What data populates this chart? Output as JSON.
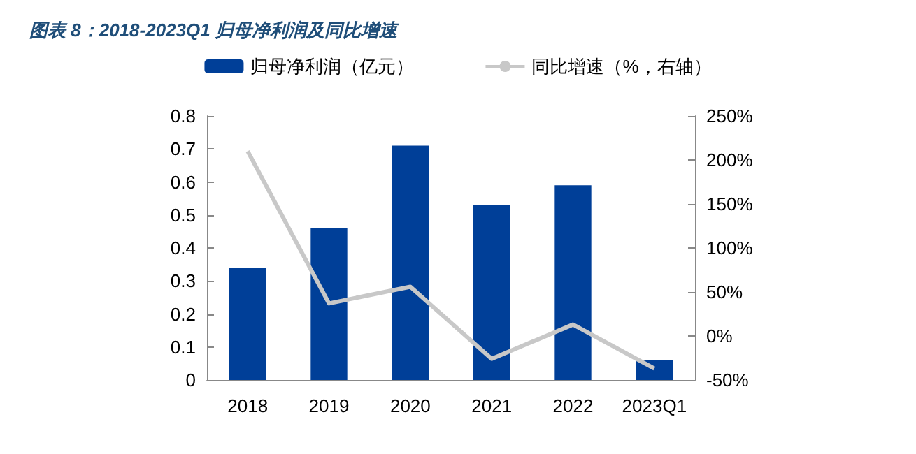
{
  "chart_data": {
    "type": "bar",
    "title": "图表 8：2018-2023Q1 归母净利润及同比增速",
    "categories": [
      "2018",
      "2019",
      "2020",
      "2021",
      "2022",
      "2023Q1"
    ],
    "series": [
      {
        "name": "归母净利润（亿元）",
        "color": "#003f98",
        "values": [
          0.34,
          0.46,
          0.71,
          0.53,
          0.59,
          0.06
        ]
      },
      {
        "name": "同比增速（%，右轴）",
        "type": "line",
        "axis": "y2",
        "color": "#c8c8c8",
        "values": [
          210,
          37,
          56,
          -26,
          13,
          -37
        ]
      }
    ],
    "ylim": [
      0,
      0.8
    ],
    "yticks": [
      0,
      0.1,
      0.2,
      0.3,
      0.4,
      0.5,
      0.6,
      0.7,
      0.8
    ],
    "y2lim": [
      -50,
      250
    ],
    "y2ticks": [
      {
        "value": -50,
        "label": "-50%"
      },
      {
        "value": 0,
        "label": "0%"
      },
      {
        "value": 50,
        "label": "50%"
      },
      {
        "value": 100,
        "label": "100%"
      },
      {
        "value": 150,
        "label": "150%"
      },
      {
        "value": 200,
        "label": "200%"
      },
      {
        "value": 250,
        "label": "250%"
      }
    ],
    "legend": "top",
    "grid": false,
    "marker": "none"
  }
}
